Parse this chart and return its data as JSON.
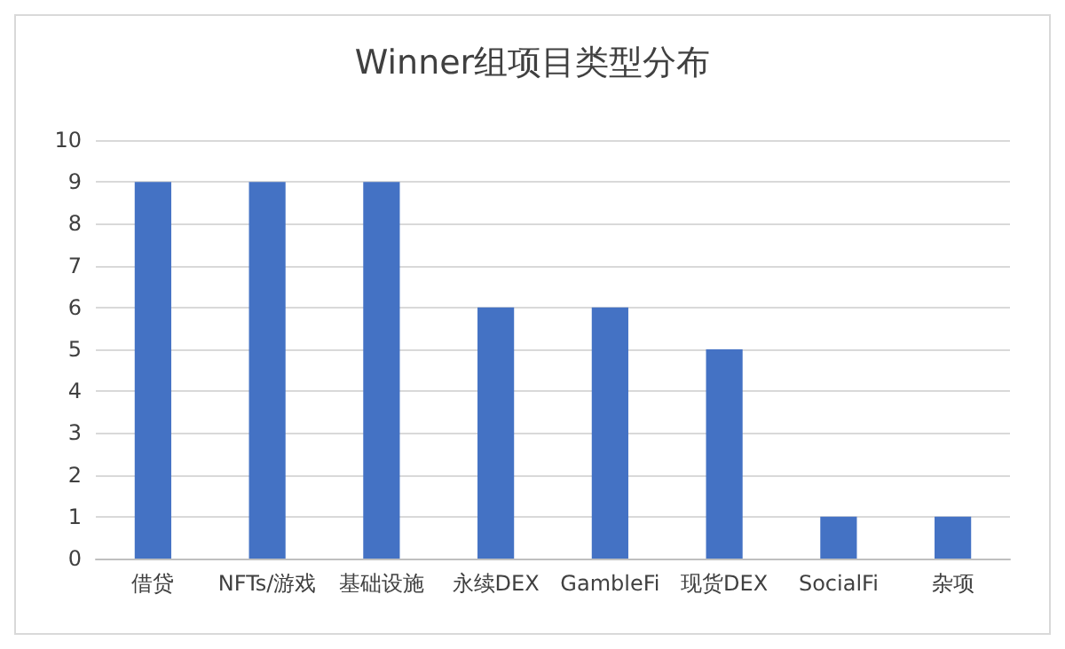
{
  "chart_data": {
    "type": "bar",
    "title": "Winner组项目类型分布",
    "categories": [
      "借贷",
      "NFTs/游戏",
      "基础设施",
      "永续DEX",
      "GambleFi",
      "现货DEX",
      "SocialFi",
      "杂项"
    ],
    "values": [
      9,
      9,
      9,
      6,
      6,
      5,
      1,
      1
    ],
    "color": "#4472c4",
    "ylim": [
      0,
      10
    ],
    "yticks": [
      0,
      1,
      2,
      3,
      4,
      5,
      6,
      7,
      8,
      9,
      10
    ],
    "grid": "y"
  }
}
